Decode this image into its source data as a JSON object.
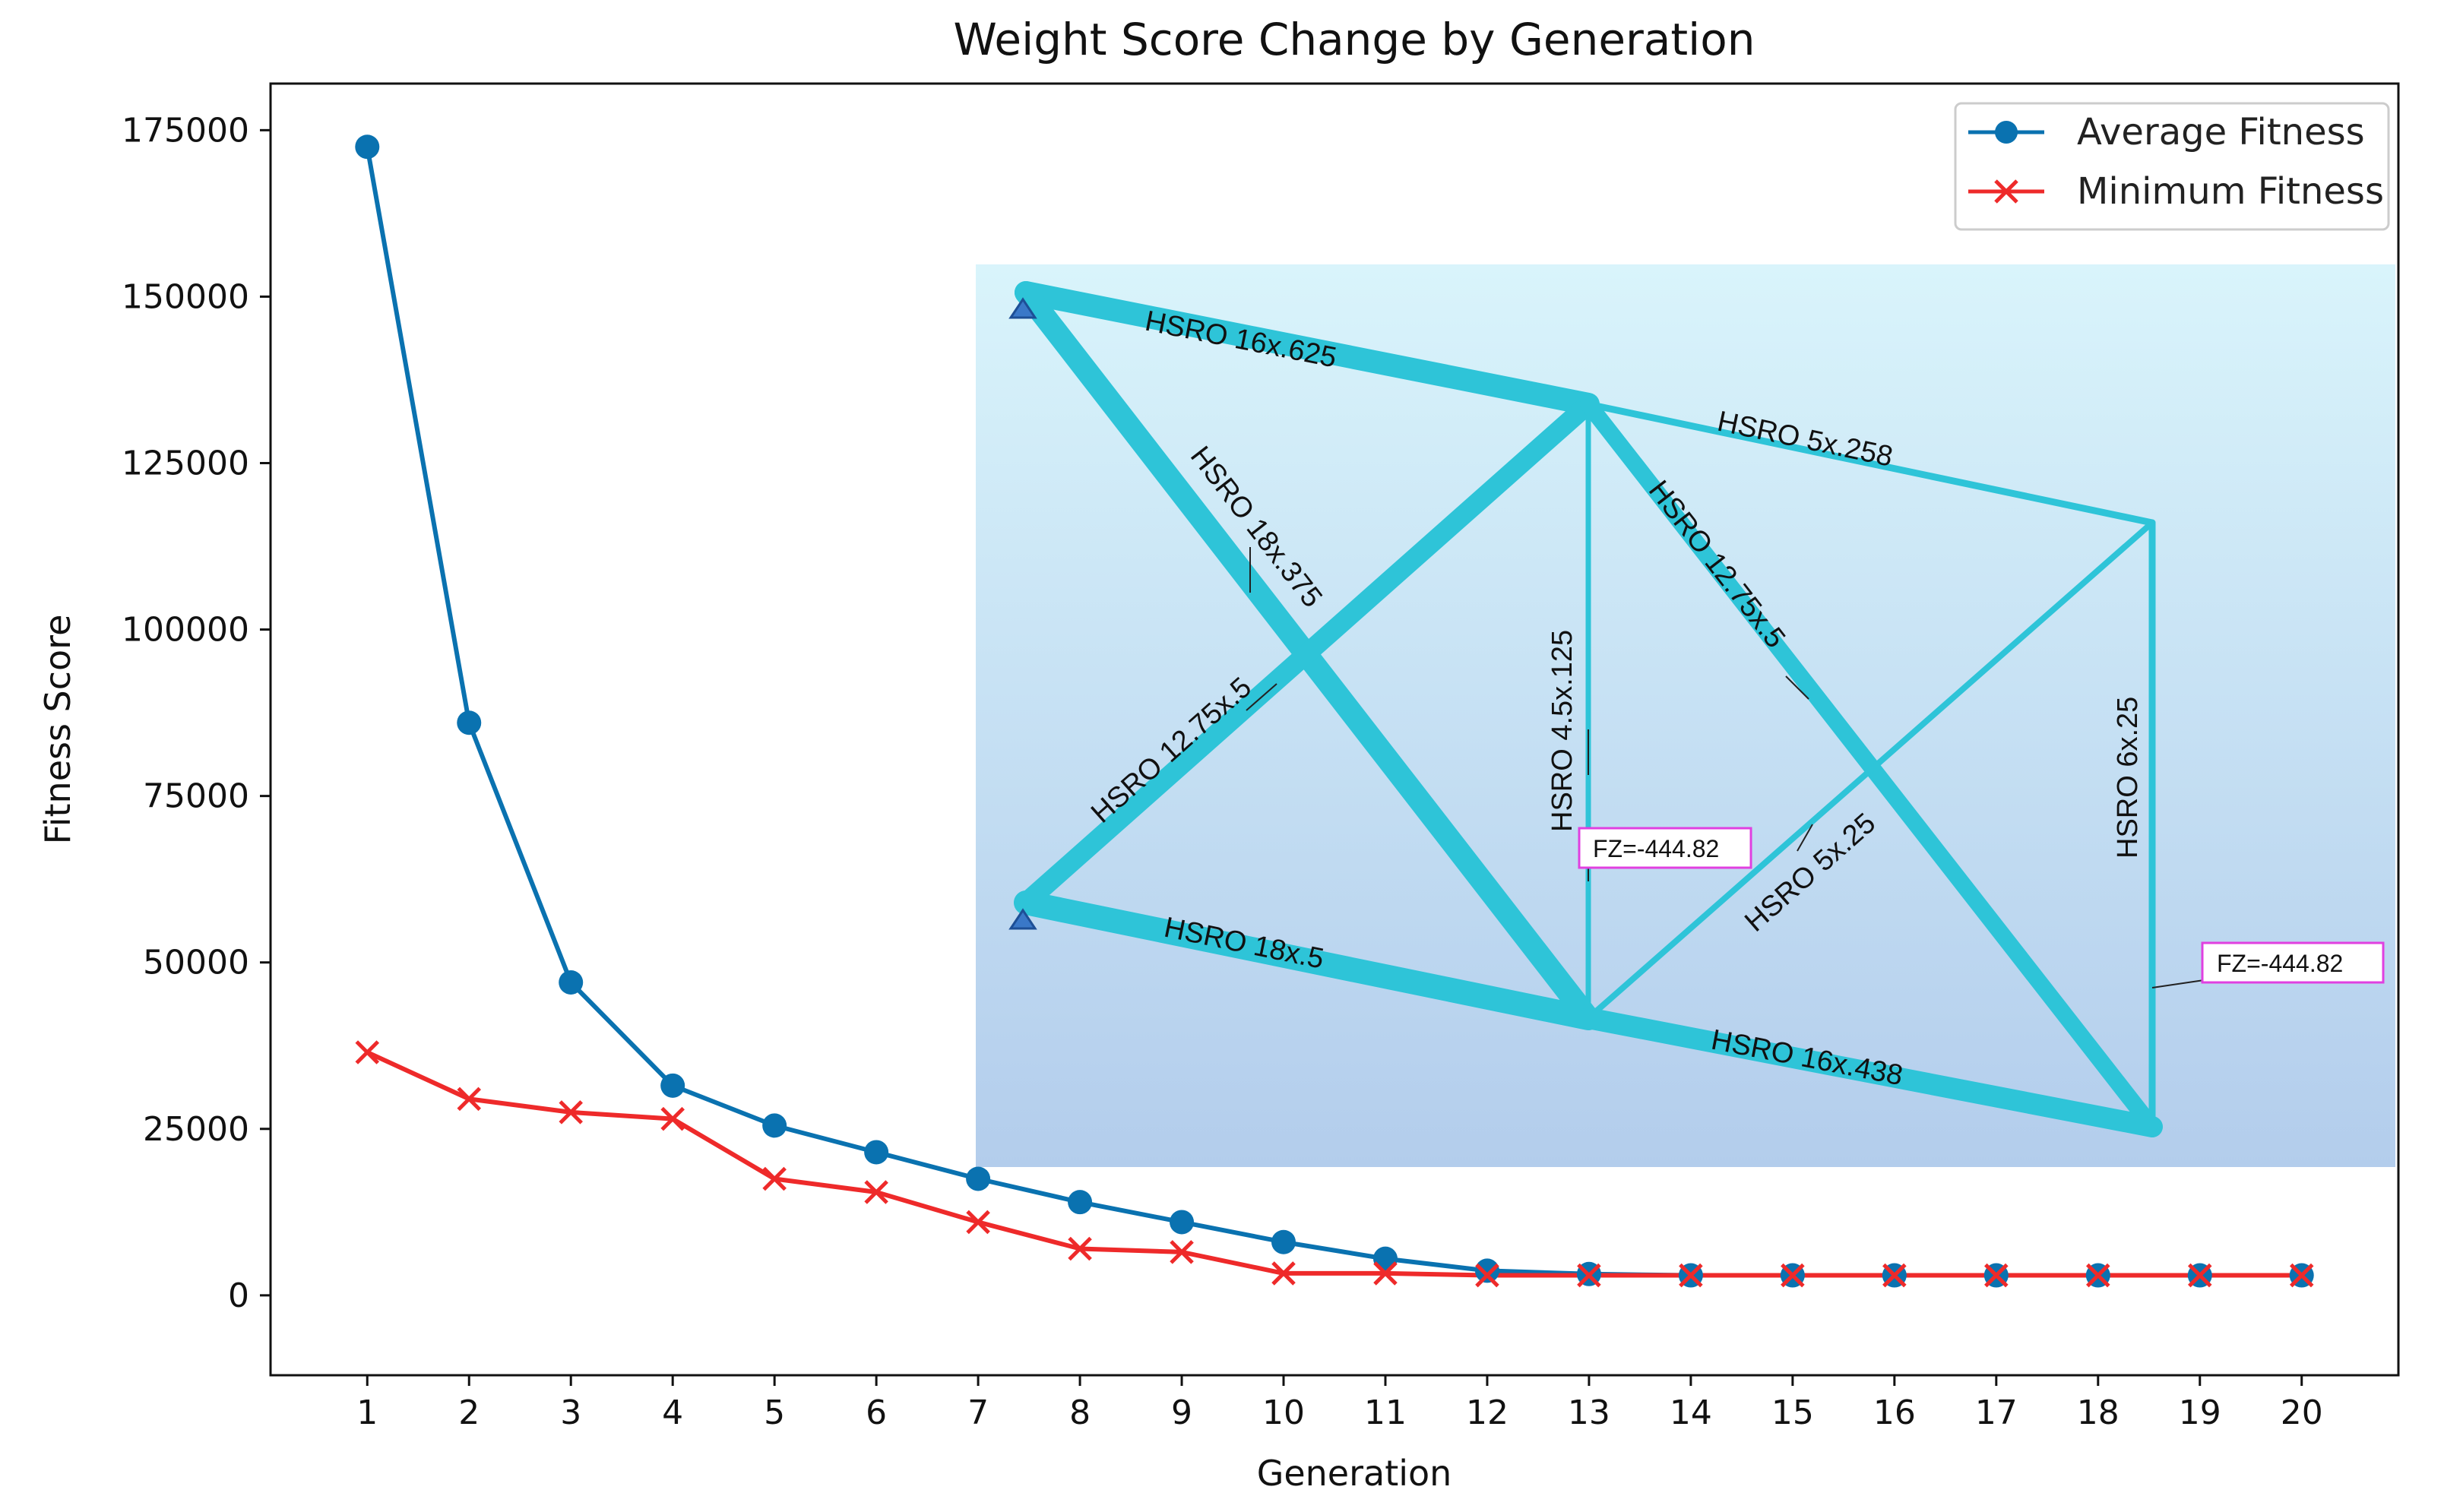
{
  "chart_data": {
    "type": "line",
    "title": "Weight Score Change by Generation",
    "xlabel": "Generation",
    "ylabel": "Fitness Score",
    "x": [
      1,
      2,
      3,
      4,
      5,
      6,
      7,
      8,
      9,
      10,
      11,
      12,
      13,
      14,
      15,
      16,
      17,
      18,
      19,
      20
    ],
    "xlim": [
      0.05,
      20.95
    ],
    "ylim": [
      -12000,
      182000
    ],
    "yticks": [
      0,
      25000,
      50000,
      75000,
      100000,
      125000,
      150000,
      175000
    ],
    "grid": false,
    "legend_position": "top-right",
    "series": [
      {
        "name": "Average Fitness",
        "color": "#0a72b0",
        "marker": "circle",
        "values": [
          172500,
          86000,
          47000,
          31500,
          25500,
          21500,
          17500,
          14000,
          11000,
          8000,
          5500,
          3700,
          3200,
          3000,
          3000,
          3000,
          3000,
          3000,
          3000,
          3000
        ]
      },
      {
        "name": "Minimum Fitness",
        "color": "#ee2a2a",
        "marker": "x",
        "values": [
          36500,
          29500,
          27500,
          26500,
          17500,
          15500,
          11000,
          7000,
          6500,
          3300,
          3300,
          3000,
          3000,
          3000,
          3000,
          3000,
          3000,
          3000,
          3000,
          3000
        ]
      }
    ]
  },
  "inset": {
    "description_labels": {
      "top_chord_left": "HSRO 16x.625",
      "top_chord_right": "HSRO 5x.258",
      "diag_left_down": "HSRO 18x.375",
      "diag_left_up": "HSRO 12.75x.5",
      "vertical_mid": "HSRO 4.5x.125",
      "diag_right_down": "HSRO 12.75x.5",
      "diag_right_up": "HSRO 5x.25",
      "vertical_right": "HSRO 6x.25",
      "bottom_chord_left": "HSRO 18x.5",
      "bottom_chord_right": "HSRO 16x.438"
    },
    "load_mid": "FZ=-444.82",
    "load_right": "FZ=-444.82",
    "colors": {
      "member": "#2ec4d8",
      "member_dark": "#1a9db3",
      "bg_top": "#d9f4fb",
      "bg_bottom": "#b3cdec",
      "load_border": "#e040e0"
    }
  }
}
